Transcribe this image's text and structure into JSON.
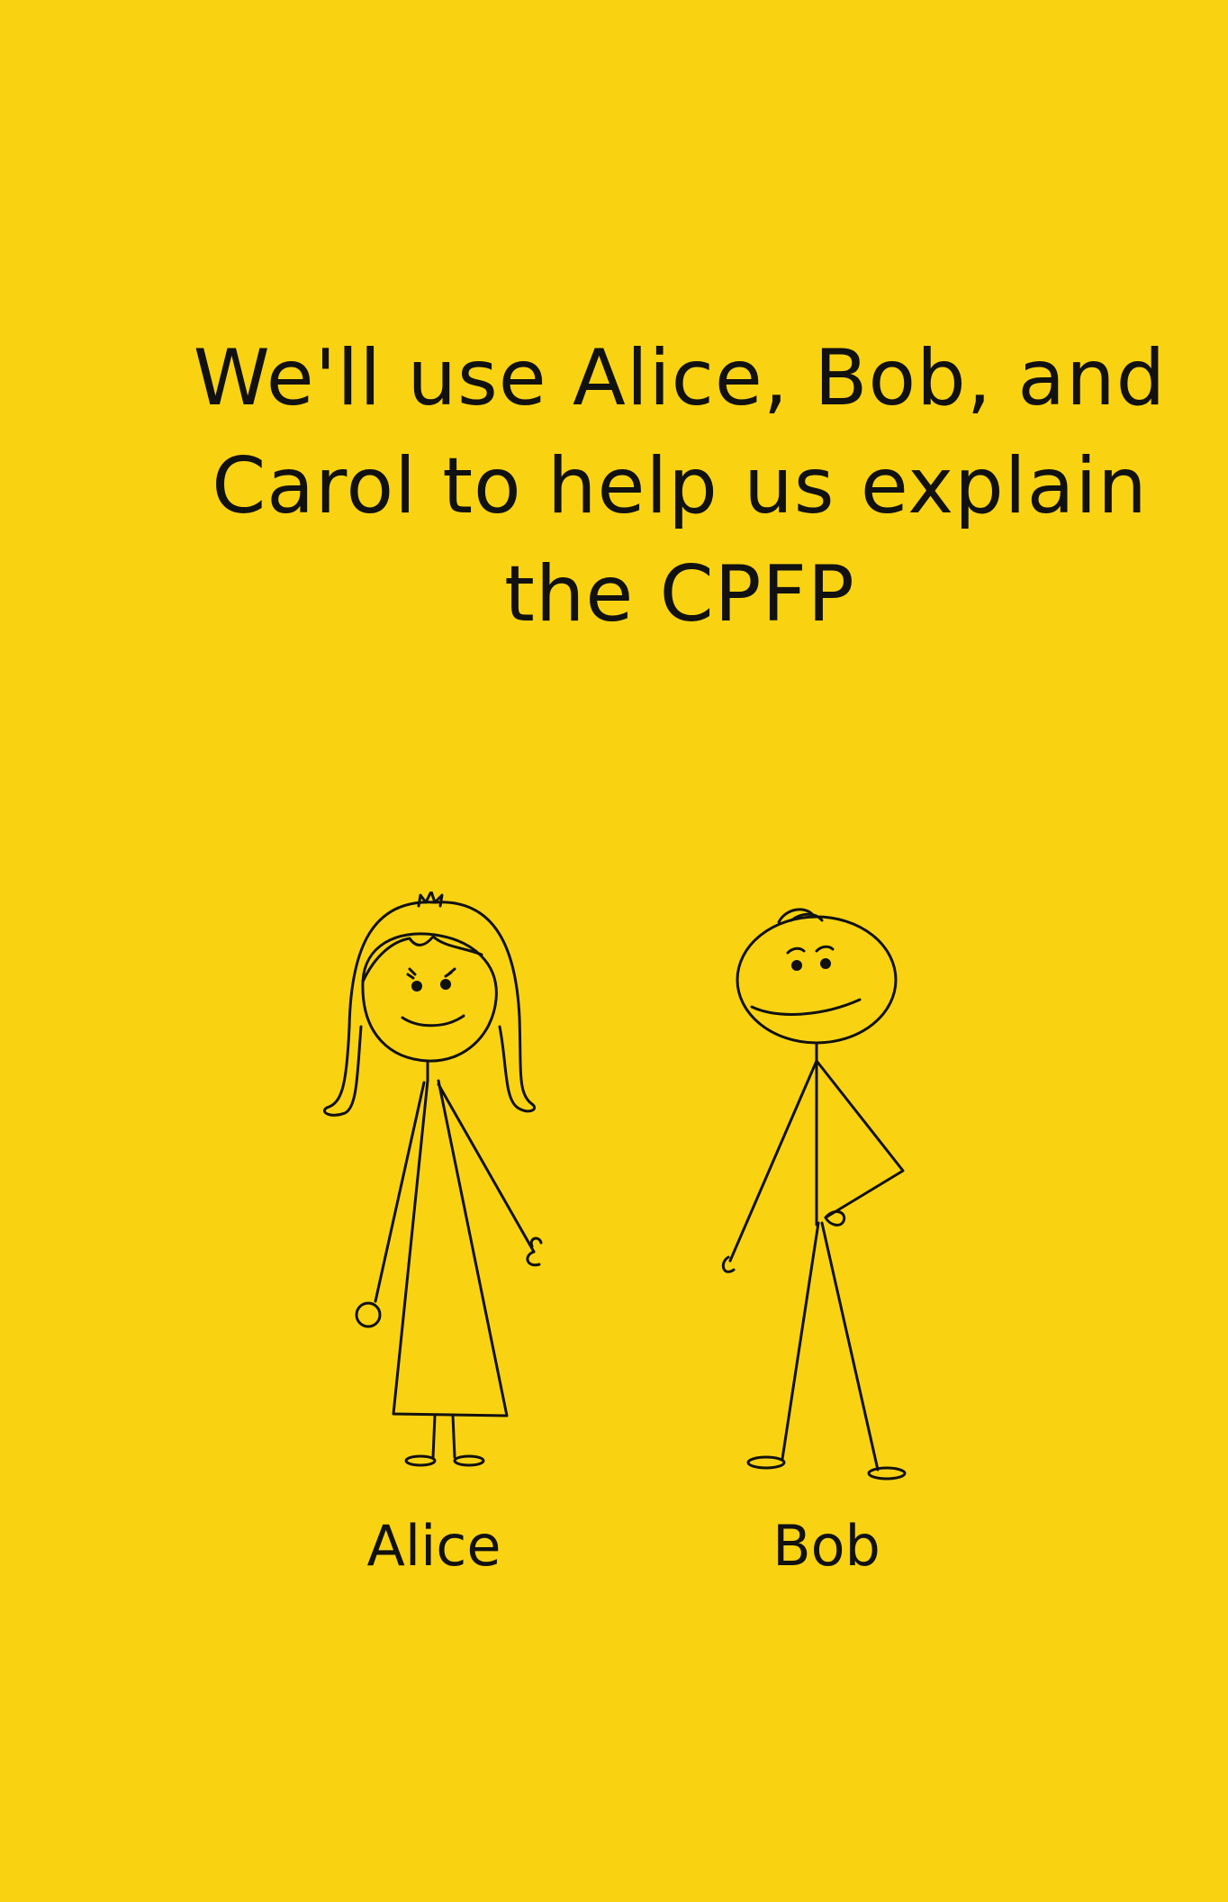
{
  "background_color": "#F9D312",
  "ink_color": "#111111",
  "headline": {
    "lines": [
      "We'll use Alice, Bob, and",
      "Carol to help us explain",
      "the CPFP"
    ]
  },
  "characters": [
    {
      "name": "Alice",
      "illustration": "stick-figure-woman-long-hair-dress"
    },
    {
      "name": "Bob",
      "illustration": "stick-figure-man-hand-on-hip"
    }
  ]
}
